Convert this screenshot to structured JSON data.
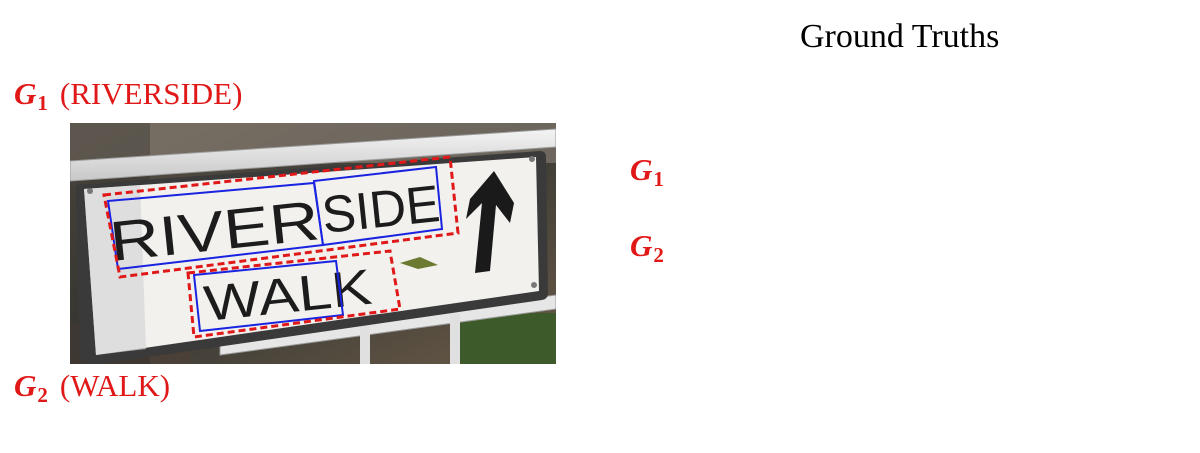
{
  "heading": "Ground Truths",
  "ground_truths": [
    {
      "symbol": "G",
      "index": "1",
      "word": "(RIVERSIDE)"
    },
    {
      "symbol": "G",
      "index": "2",
      "word": "(WALK)"
    }
  ],
  "sign": {
    "line1_left": "RIVER",
    "line1_right": "SIDE",
    "line2": "WALK",
    "line2_tail": "K"
  },
  "colors": {
    "label_red": "#e01818",
    "word_box_blue": "#1a24e0",
    "group_box_red_dashed": "#e01818"
  }
}
